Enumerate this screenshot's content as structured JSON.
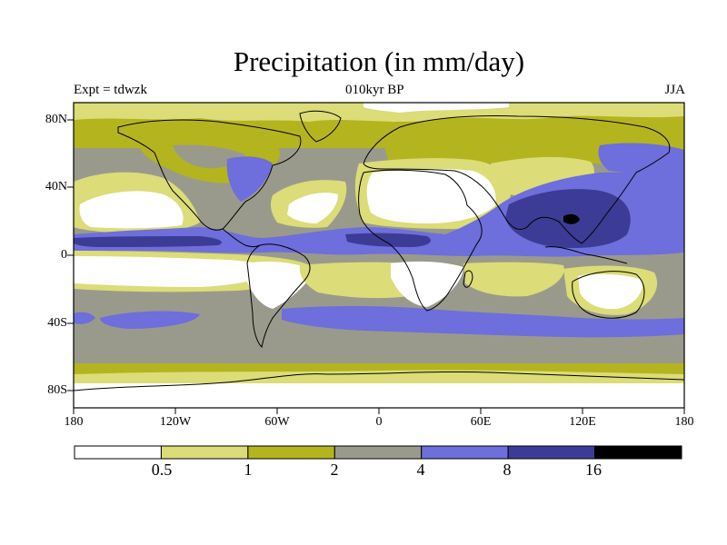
{
  "title": "Precipitation (in mm/day)",
  "left_label": "Expt = tdwzk",
  "center_label": "010kyr BP",
  "right_label": "JJA",
  "lat_labels": [
    "80N",
    "40N",
    "0",
    "40S",
    "80S"
  ],
  "lon_labels": [
    "180",
    "120W",
    "60W",
    "0",
    "60E",
    "120E",
    "180"
  ],
  "colorbar": {
    "colors": [
      "#ffffff",
      "#dcdc78",
      "#b4b41e",
      "#9a9a8c",
      "#6e6edc",
      "#3c3c96",
      "#000000"
    ],
    "labels": [
      "0.5",
      "1",
      "2",
      "4",
      "8",
      "16"
    ]
  },
  "map": {
    "lon_range": [
      -180,
      180
    ],
    "lat_range": [
      -90,
      90
    ]
  }
}
